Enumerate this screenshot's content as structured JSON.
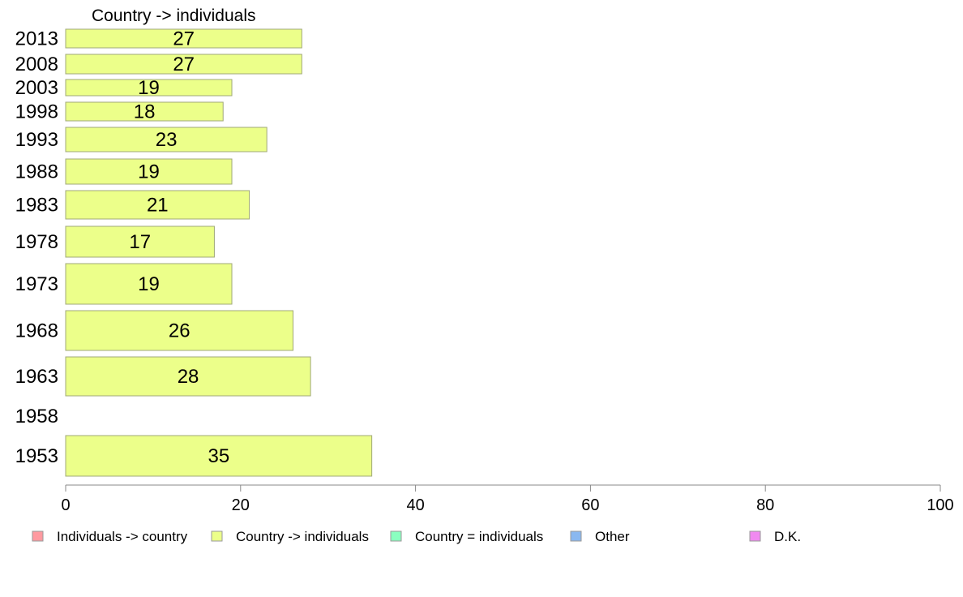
{
  "chart_data": {
    "type": "bar",
    "orientation": "horizontal",
    "series_title": "Country -> individuals",
    "categories": [
      "2013",
      "2008",
      "2003",
      "1998",
      "1993",
      "1988",
      "1983",
      "1978",
      "1973",
      "1968",
      "1963",
      "1958",
      "1953"
    ],
    "series": [
      {
        "name": "Country -> individuals",
        "color": "#ecff8a",
        "values": [
          27,
          27,
          19,
          18,
          23,
          19,
          21,
          17,
          19,
          26,
          28,
          null,
          35
        ]
      }
    ],
    "xlim": [
      0,
      100
    ],
    "xticks": [
      "0",
      "20",
      "40",
      "60",
      "80",
      "100"
    ],
    "grid": false,
    "legend_position": "bottom",
    "legend": [
      {
        "label": "Individuals -> country",
        "color": "#ff9aa0"
      },
      {
        "label": "Country -> individuals",
        "color": "#ecff8a"
      },
      {
        "label": "Country = individuals",
        "color": "#8affc0"
      },
      {
        "label": "Other",
        "color": "#8ab8f0"
      },
      {
        "label": "D.K.",
        "color": "#f08af0"
      }
    ]
  }
}
